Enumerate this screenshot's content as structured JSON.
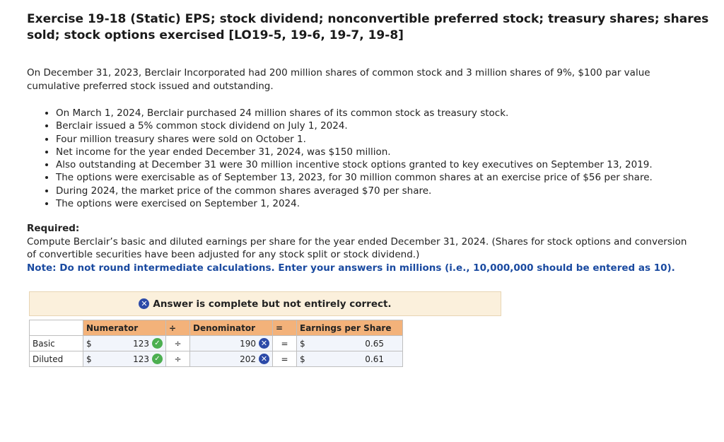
{
  "title": "Exercise 19-18 (Static) EPS; stock dividend; nonconvertible preferred stock; treasury shares; shares sold; stock options exercised [LO19-5, 19-6, 19-7, 19-8]",
  "intro": "On December 31, 2023, Berclair Incorporated had 200 million shares of common stock and 3 million shares of 9%, $100 par value cumulative preferred stock issued and outstanding.",
  "bullets": [
    "On March 1, 2024, Berclair purchased 24 million shares of its common stock as treasury stock.",
    "Berclair issued a 5% common stock dividend on July 1, 2024.",
    "Four million treasury shares were sold on October 1.",
    "Net income for the year ended December 31, 2024, was $150 million.",
    "Also outstanding at December 31 were 30 million incentive stock options granted to key executives on September 13, 2019.",
    "The options were exercisable as of September 13, 2023, for 30 million common shares at an exercise price of $56 per share.",
    "During 2024, the market price of the common shares averaged $70 per share.",
    "The options were exercised on September 1, 2024."
  ],
  "required": {
    "heading": "Required:",
    "text": "Compute Berclair’s basic and diluted earnings per share for the year ended December 31, 2024. (Shares for stock options and conversion of convertible securities have been adjusted for any stock split or stock dividend.)",
    "note": "Note: Do not round intermediate calculations. Enter your answers in millions (i.e., 10,000,000 should be entered as 10)."
  },
  "banner": {
    "icon": "x-circle-icon",
    "text": "Answer is complete but not entirely correct.",
    "color": "#fbf0dc"
  },
  "table": {
    "headers": {
      "numerator": "Numerator",
      "div": "÷",
      "denominator": "Denominator",
      "eq": "=",
      "eps": "Earnings per Share"
    },
    "rows": [
      {
        "label": "Basic",
        "num_dollar": "$",
        "numerator": "123",
        "num_status": "correct",
        "div": "÷",
        "denominator": "190",
        "den_status": "incorrect",
        "eq": "=",
        "eps_dollar": "$",
        "eps": "0.65"
      },
      {
        "label": "Diluted",
        "num_dollar": "$",
        "numerator": "123",
        "num_status": "correct",
        "div": "÷",
        "denominator": "202",
        "den_status": "incorrect",
        "eq": "=",
        "eps_dollar": "$",
        "eps": "0.61"
      }
    ],
    "header_color": "#f3b27a"
  }
}
